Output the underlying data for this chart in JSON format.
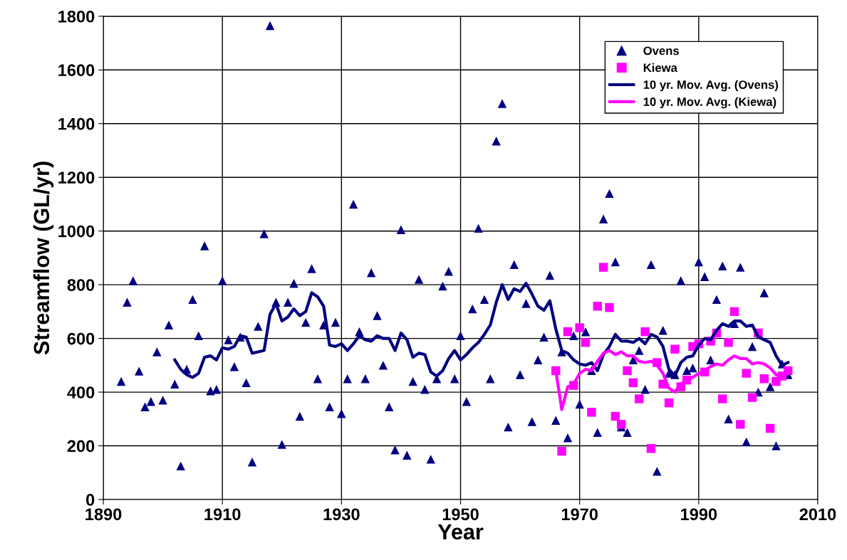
{
  "chart_data": {
    "type": "scatter",
    "xlabel": "Year",
    "ylabel": "Streamflow (GL/yr)",
    "xlim": [
      1890,
      2010
    ],
    "xticks": [
      1890,
      1910,
      1930,
      1950,
      1970,
      1990,
      2010
    ],
    "ylim": [
      0,
      1800
    ],
    "yticks": [
      0,
      200,
      400,
      600,
      800,
      1000,
      1200,
      1400,
      1600,
      1800
    ],
    "grid": true,
    "legend": "top right",
    "series": [
      {
        "name": "Ovens",
        "marker": "triangle",
        "color": "#000080",
        "x": [
          1893,
          1894,
          1895,
          1896,
          1897,
          1898,
          1899,
          1900,
          1901,
          1902,
          1903,
          1904,
          1905,
          1906,
          1907,
          1908,
          1909,
          1910,
          1911,
          1912,
          1913,
          1914,
          1915,
          1916,
          1917,
          1918,
          1919,
          1920,
          1921,
          1922,
          1923,
          1924,
          1925,
          1926,
          1927,
          1928,
          1929,
          1930,
          1931,
          1932,
          1933,
          1934,
          1935,
          1936,
          1937,
          1938,
          1939,
          1940,
          1941,
          1942,
          1943,
          1944,
          1945,
          1946,
          1947,
          1948,
          1949,
          1950,
          1951,
          1952,
          1953,
          1954,
          1955,
          1956,
          1957,
          1958,
          1959,
          1960,
          1961,
          1962,
          1963,
          1964,
          1965,
          1966,
          1967,
          1968,
          1969,
          1970,
          1971,
          1972,
          1973,
          1974,
          1975,
          1976,
          1977,
          1978,
          1979,
          1980,
          1981,
          1982,
          1983,
          1984,
          1985,
          1986,
          1987,
          1988,
          1989,
          1990,
          1991,
          1992,
          1993,
          1994,
          1995,
          1996,
          1997,
          1998,
          1999,
          2000,
          2001,
          2002,
          2003,
          2004,
          2005
        ],
        "values": [
          440,
          735,
          815,
          478,
          345,
          365,
          550,
          370,
          650,
          430,
          125,
          485,
          745,
          610,
          945,
          405,
          410,
          815,
          595,
          495,
          605,
          435,
          140,
          645,
          990,
          1765,
          735,
          205,
          735,
          805,
          310,
          660,
          860,
          450,
          650,
          345,
          660,
          320,
          450,
          1100,
          625,
          450,
          845,
          685,
          500,
          345,
          185,
          1005,
          165,
          440,
          820,
          410,
          150,
          450,
          795,
          850,
          450,
          610,
          365,
          710,
          1010,
          745,
          450,
          1335,
          1475,
          270,
          875,
          465,
          730,
          290,
          520,
          605,
          835,
          295,
          550,
          230,
          610,
          355,
          625,
          480,
          250,
          1045,
          1140,
          885,
          270,
          250,
          520,
          555,
          410,
          875,
          105,
          630,
          470,
          465,
          815,
          480,
          490,
          885,
          830,
          520,
          745,
          870,
          300,
          655,
          865,
          215,
          570,
          400,
          770,
          420,
          200,
          505,
          465
        ]
      },
      {
        "name": "Kiewa",
        "marker": "square",
        "color": "#ff00ff",
        "x": [
          1966,
          1967,
          1968,
          1969,
          1970,
          1971,
          1972,
          1973,
          1974,
          1975,
          1976,
          1977,
          1978,
          1979,
          1980,
          1981,
          1982,
          1983,
          1984,
          1985,
          1986,
          1987,
          1988,
          1989,
          1990,
          1991,
          1992,
          1993,
          1994,
          1995,
          1996,
          1997,
          1998,
          1999,
          2000,
          2001,
          2002,
          2003,
          2004,
          2005
        ],
        "values": [
          480,
          180,
          625,
          425,
          640,
          585,
          325,
          720,
          865,
          715,
          310,
          280,
          480,
          435,
          375,
          625,
          190,
          510,
          430,
          360,
          560,
          420,
          445,
          570,
          580,
          475,
          590,
          620,
          375,
          585,
          700,
          280,
          470,
          380,
          620,
          450,
          265,
          440,
          460,
          480
        ]
      },
      {
        "name": "10 yr. Mov. Avg. (Ovens)",
        "type": "line",
        "color": "#000080",
        "x": [
          1902,
          1903,
          1904,
          1905,
          1906,
          1907,
          1908,
          1909,
          1910,
          1911,
          1912,
          1913,
          1914,
          1915,
          1916,
          1917,
          1918,
          1919,
          1920,
          1921,
          1922,
          1923,
          1924,
          1925,
          1926,
          1927,
          1928,
          1929,
          1930,
          1931,
          1932,
          1933,
          1934,
          1935,
          1936,
          1937,
          1938,
          1939,
          1940,
          1941,
          1942,
          1943,
          1944,
          1945,
          1946,
          1947,
          1948,
          1949,
          1950,
          1951,
          1952,
          1953,
          1954,
          1955,
          1956,
          1957,
          1958,
          1959,
          1960,
          1961,
          1962,
          1963,
          1964,
          1965,
          1966,
          1967,
          1968,
          1969,
          1970,
          1971,
          1972,
          1973,
          1974,
          1975,
          1976,
          1977,
          1978,
          1979,
          1980,
          1981,
          1982,
          1983,
          1984,
          1985,
          1986,
          1987,
          1988,
          1989,
          1990,
          1991,
          1992,
          1993,
          1994,
          1995,
          1996,
          1997,
          1998,
          1999,
          2000,
          2001,
          2002,
          2003,
          2004,
          2005
        ],
        "values": [
          520,
          485,
          465,
          455,
          470,
          530,
          535,
          520,
          565,
          560,
          570,
          610,
          605,
          545,
          550,
          555,
          690,
          730,
          665,
          680,
          710,
          685,
          700,
          770,
          755,
          720,
          575,
          570,
          580,
          555,
          580,
          610,
          595,
          590,
          610,
          600,
          600,
          555,
          620,
          595,
          530,
          545,
          540,
          475,
          460,
          480,
          525,
          555,
          520,
          540,
          565,
          585,
          615,
          650,
          735,
          800,
          745,
          785,
          775,
          805,
          765,
          720,
          705,
          740,
          635,
          555,
          545,
          520,
          505,
          500,
          510,
          480,
          540,
          570,
          615,
          590,
          590,
          585,
          600,
          580,
          615,
          605,
          570,
          485,
          460,
          510,
          530,
          535,
          575,
          600,
          595,
          630,
          655,
          645,
          665,
          665,
          645,
          650,
          605,
          595,
          585,
          535,
          500,
          510
        ]
      },
      {
        "name": "10 yr. Mov. Avg. (Kiewa)",
        "type": "line",
        "color": "#ff00ff",
        "x": [
          1966,
          1967,
          1968,
          1969,
          1970,
          1971,
          1972,
          1973,
          1974,
          1975,
          1976,
          1977,
          1978,
          1979,
          1980,
          1981,
          1982,
          1983,
          1984,
          1985,
          1986,
          1987,
          1988,
          1989,
          1990,
          1991,
          1992,
          1993,
          1994,
          1995,
          1996,
          1997,
          1998,
          1999,
          2000,
          2001,
          2002,
          2003,
          2004,
          2005
        ],
        "values": [
          480,
          335,
          420,
          430,
          470,
          485,
          480,
          515,
          545,
          555,
          540,
          550,
          535,
          535,
          515,
          510,
          515,
          500,
          470,
          415,
          400,
          430,
          445,
          455,
          470,
          480,
          495,
          505,
          500,
          520,
          535,
          525,
          525,
          505,
          510,
          505,
          490,
          465,
          455,
          470
        ]
      }
    ]
  }
}
